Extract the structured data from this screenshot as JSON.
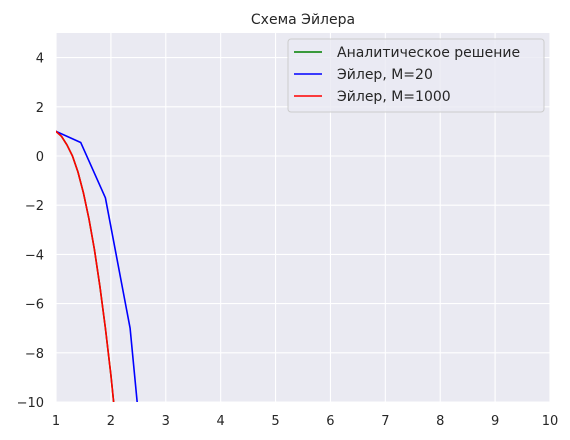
{
  "chart_data": {
    "type": "line",
    "title": "Схема Эйлера",
    "xlabel": "",
    "ylabel": "",
    "xlim": [
      1,
      10
    ],
    "ylim": [
      -10,
      5
    ],
    "xticks": [
      1,
      2,
      3,
      4,
      5,
      6,
      7,
      8,
      9,
      10
    ],
    "yticks": [
      -10,
      -8,
      -6,
      -4,
      -2,
      0,
      2,
      4
    ],
    "xtick_labels": [
      "1",
      "2",
      "3",
      "4",
      "5",
      "6",
      "7",
      "8",
      "9",
      "10"
    ],
    "ytick_labels": [
      "−10",
      "−8",
      "−6",
      "−4",
      "−2",
      "0",
      "2",
      "4"
    ],
    "grid": true,
    "legend_position": "top-right",
    "background": "#EAEAF2",
    "series": [
      {
        "name": "Аналитическое решение",
        "color": "#008000",
        "x": [
          1.0,
          1.1,
          1.2,
          1.3,
          1.4,
          1.5,
          1.6,
          1.7,
          1.8,
          1.9,
          2.0,
          2.05,
          2.1
        ],
        "y": [
          1.0,
          0.8,
          0.45,
          0.0,
          -0.65,
          -1.5,
          -2.55,
          -3.8,
          -5.3,
          -7.0,
          -8.9,
          -10.0,
          -11.0
        ]
      },
      {
        "name": "Эйлер, M=20",
        "color": "#0000FF",
        "x": [
          1.0,
          1.45,
          1.9,
          2.35,
          2.5
        ],
        "y": [
          1.0,
          0.55,
          -1.7,
          -7.0,
          -10.5
        ]
      },
      {
        "name": "Эйлер, M=1000",
        "color": "#FF0000",
        "x": [
          1.0,
          1.1,
          1.2,
          1.3,
          1.4,
          1.5,
          1.6,
          1.7,
          1.8,
          1.9,
          2.0,
          2.05,
          2.1
        ],
        "y": [
          1.0,
          0.8,
          0.45,
          0.0,
          -0.65,
          -1.5,
          -2.55,
          -3.8,
          -5.3,
          -7.0,
          -8.9,
          -10.0,
          -11.0
        ]
      }
    ]
  }
}
